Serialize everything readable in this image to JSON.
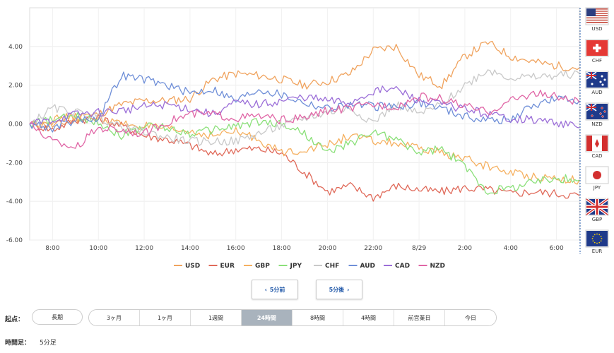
{
  "chart_data": {
    "type": "line",
    "title": "",
    "xlabel": "",
    "ylabel": "",
    "ylim": [
      -6,
      6
    ],
    "yticks": [
      "4.00",
      "2.00",
      "0.00",
      "-2.00",
      "-4.00",
      "-6.00"
    ],
    "ytick_values": [
      4,
      2,
      0,
      -2,
      -4,
      -6
    ],
    "xticks": [
      "8:00",
      "10:00",
      "12:00",
      "14:00",
      "16:00",
      "18:00",
      "20:00",
      "22:00",
      "8/29",
      "2:00",
      "4:00",
      "6:00"
    ],
    "xtick_values": [
      1,
      3,
      5,
      7,
      9,
      11,
      13,
      15,
      17,
      19,
      21,
      23
    ],
    "xlim": [
      0,
      24
    ],
    "series": [
      {
        "name": "USD",
        "color": "#f0a35e",
        "x": [
          0,
          1,
          2,
          3,
          4,
          5,
          6,
          7,
          8,
          9,
          10,
          11,
          12,
          13,
          14,
          15,
          16,
          17,
          18,
          19,
          20,
          21,
          22,
          23,
          24
        ],
        "values": [
          0,
          -0.1,
          0.2,
          0.5,
          1.0,
          1.2,
          1.2,
          1.3,
          2.3,
          2.6,
          2.5,
          2.3,
          2.0,
          2.2,
          2.6,
          3.8,
          4.0,
          2.5,
          2.0,
          3.5,
          4.2,
          3.5,
          3.2,
          3.0,
          2.9
        ]
      },
      {
        "name": "EUR",
        "color": "#e06a5a",
        "x": [
          0,
          1,
          2,
          3,
          4,
          5,
          6,
          7,
          8,
          9,
          10,
          11,
          12,
          13,
          14,
          15,
          16,
          17,
          18,
          19,
          20,
          21,
          22,
          23,
          24
        ],
        "values": [
          0,
          -0.3,
          0.2,
          0.3,
          -0.1,
          -0.6,
          -0.8,
          -1.1,
          -1.6,
          -1.3,
          -1.3,
          -1.5,
          -2.5,
          -3.5,
          -3.2,
          -3.8,
          -3.2,
          -3.4,
          -3.5,
          -3.3,
          -3.4,
          -3.6,
          -3.5,
          -3.6,
          -3.7
        ]
      },
      {
        "name": "GBP",
        "color": "#f5b060",
        "x": [
          0,
          1,
          2,
          3,
          4,
          5,
          6,
          7,
          8,
          9,
          10,
          11,
          12,
          13,
          14,
          15,
          16,
          17,
          18,
          19,
          20,
          21,
          22,
          23,
          24
        ],
        "values": [
          0,
          0.2,
          0.4,
          0.3,
          0.0,
          -0.1,
          -0.3,
          -0.4,
          -0.6,
          -0.4,
          -0.8,
          -1.5,
          -1.3,
          -1.1,
          -0.6,
          -0.9,
          -1.0,
          -1.3,
          -1.5,
          -1.8,
          -2.2,
          -2.5,
          -2.7,
          -2.8,
          -2.9
        ]
      },
      {
        "name": "JPY",
        "color": "#8be07a",
        "x": [
          0,
          1,
          2,
          3,
          4,
          5,
          6,
          7,
          8,
          9,
          10,
          11,
          12,
          13,
          14,
          15,
          16,
          17,
          18,
          19,
          20,
          21,
          22,
          23,
          24
        ],
        "values": [
          0,
          0.2,
          0.4,
          0.1,
          -0.6,
          -0.1,
          -0.2,
          -0.5,
          -0.3,
          -0.1,
          0.1,
          0.0,
          -0.5,
          -1.5,
          -1.0,
          -0.4,
          -0.8,
          -1.5,
          -1.3,
          -2.2,
          -3.5,
          -3.3,
          -3.0,
          -2.8,
          -2.9
        ]
      },
      {
        "name": "CHF",
        "color": "#c9c9c9",
        "x": [
          0,
          1,
          2,
          3,
          4,
          5,
          6,
          7,
          8,
          9,
          10,
          11,
          12,
          13,
          14,
          15,
          16,
          17,
          18,
          19,
          20,
          21,
          22,
          23,
          24
        ],
        "values": [
          0,
          0.8,
          0.6,
          0.4,
          -0.2,
          -0.4,
          -0.7,
          -0.9,
          -0.9,
          -0.9,
          -0.5,
          -0.1,
          0.3,
          0.6,
          0.8,
          0.1,
          1.0,
          0.5,
          1.0,
          2.0,
          2.8,
          2.4,
          2.4,
          2.5,
          2.6
        ]
      },
      {
        "name": "AUD",
        "color": "#6f8fd8",
        "x": [
          0,
          1,
          2,
          3,
          4,
          5,
          6,
          7,
          8,
          9,
          10,
          11,
          12,
          13,
          14,
          15,
          16,
          17,
          18,
          19,
          20,
          21,
          22,
          23,
          24
        ],
        "values": [
          0,
          -0.2,
          0.2,
          0.3,
          2.5,
          2.3,
          2.0,
          1.6,
          1.8,
          1.2,
          1.8,
          1.5,
          1.1,
          0.8,
          1.0,
          0.9,
          0.9,
          1.1,
          0.8,
          0.4,
          0.2,
          0.2,
          1.0,
          1.3,
          1.2
        ]
      },
      {
        "name": "CAD",
        "color": "#9b6ed8",
        "x": [
          0,
          1,
          2,
          3,
          4,
          5,
          6,
          7,
          8,
          9,
          10,
          11,
          12,
          13,
          14,
          15,
          16,
          17,
          18,
          19,
          20,
          21,
          22,
          23,
          24
        ],
        "values": [
          0,
          0.2,
          0.5,
          0.6,
          0.7,
          0.9,
          1.0,
          0.8,
          0.5,
          1.1,
          1.0,
          1.2,
          1.4,
          1.2,
          1.1,
          1.7,
          1.8,
          1.2,
          1.0,
          0.8,
          0.5,
          0.3,
          0.2,
          0.1,
          -0.2
        ]
      },
      {
        "name": "NZD",
        "color": "#e066a6",
        "x": [
          0,
          1,
          2,
          3,
          4,
          5,
          6,
          7,
          8,
          9,
          10,
          11,
          12,
          13,
          14,
          15,
          16,
          17,
          18,
          19,
          20,
          21,
          22,
          23,
          24
        ],
        "values": [
          0,
          -0.9,
          -1.2,
          -0.2,
          -0.3,
          -0.5,
          0.1,
          0.5,
          0.5,
          0.3,
          0.4,
          0.2,
          0.3,
          0.7,
          0.8,
          1.0,
          0.9,
          1.4,
          1.3,
          0.9,
          0.6,
          1.2,
          1.6,
          1.4,
          1.1
        ]
      }
    ],
    "legend_position": "bottom"
  },
  "flags": [
    {
      "code": "USD"
    },
    {
      "code": "CHF"
    },
    {
      "code": "AUD"
    },
    {
      "code": "NZD"
    },
    {
      "code": "CAD"
    },
    {
      "code": "JPY"
    },
    {
      "code": "GBP"
    },
    {
      "code": "EUR"
    }
  ],
  "nav": {
    "prev_label": "5分前",
    "next_label": "5分後",
    "prev_icon": "chevron-left-icon",
    "next_icon": "chevron-right-icon"
  },
  "periods": {
    "label": "起点：",
    "long_term": "長期",
    "options": [
      "3ヶ月",
      "1ヶ月",
      "1週間",
      "24時間",
      "8時間",
      "4時間",
      "前営業日",
      "今日"
    ],
    "active": "24時間"
  },
  "timeframe": {
    "label": "時間足：",
    "value": "5分足"
  },
  "colors": {
    "accent": "#1f57a8",
    "active_period_bg": "#a9b3bd",
    "divider": "#1f57a8"
  }
}
